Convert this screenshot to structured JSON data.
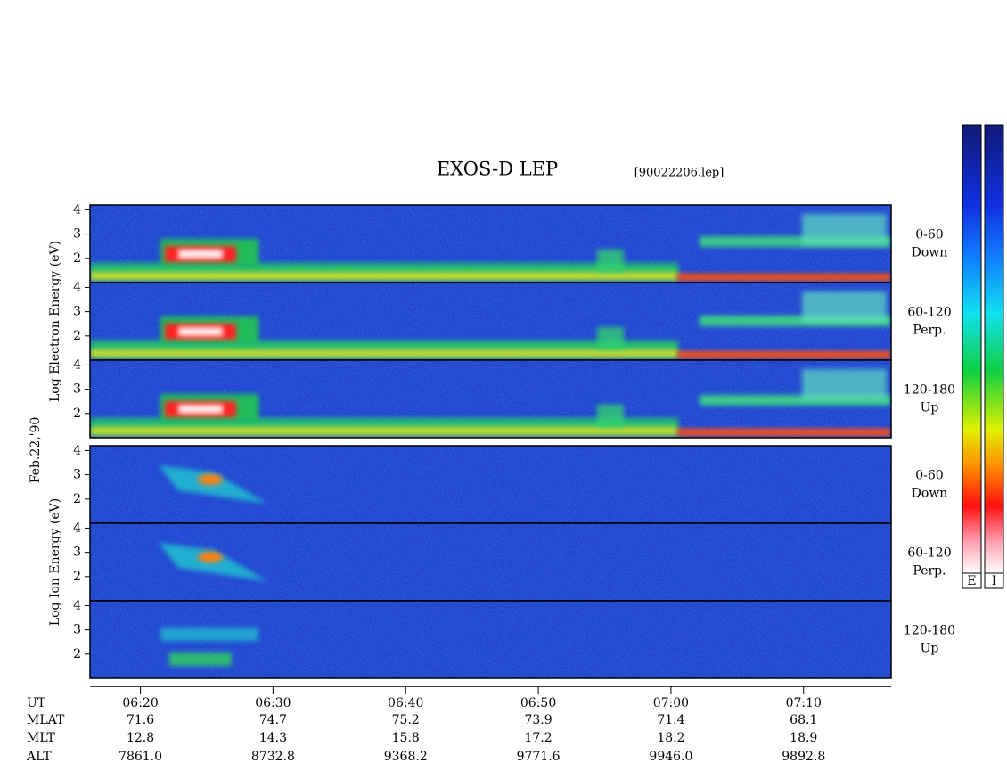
{
  "chart_data": {
    "type": "spectrogram",
    "title": "EXOS-D LEP",
    "subtitle": "[90022206.lep]",
    "date_label": "Feb.22,'90",
    "groups": [
      {
        "ylabel": "Log Electron Energy (eV)",
        "colorbar_label": "E",
        "panels": [
          {
            "label": [
              "0-60",
              "Down"
            ]
          },
          {
            "label": [
              "60-120",
              "Perp."
            ]
          },
          {
            "label": [
              "120-180",
              "Up"
            ]
          }
        ]
      },
      {
        "ylabel": "Log Ion Energy (eV)",
        "colorbar_label": "I",
        "panels": [
          {
            "label": [
              "0-60",
              "Down"
            ]
          },
          {
            "label": [
              "60-120",
              "Perp."
            ]
          },
          {
            "label": [
              "120-180",
              "Up"
            ]
          }
        ]
      }
    ],
    "ylim": [
      1,
      4.2
    ],
    "yticks": [
      2,
      3,
      4
    ],
    "xlim": [
      376.2,
      436.6
    ],
    "xticks": [
      {
        "value": 380,
        "label": "06:20"
      },
      {
        "value": 390,
        "label": "06:30"
      },
      {
        "value": 400,
        "label": "06:40"
      },
      {
        "value": 410,
        "label": "06:50"
      },
      {
        "value": 420,
        "label": "07:00"
      },
      {
        "value": 430,
        "label": "07:10"
      }
    ],
    "orbit_rows": [
      {
        "name": "UT"
      },
      {
        "name": "MLAT",
        "values": [
          "71.6",
          "74.7",
          "75.2",
          "73.9",
          "71.4",
          "68.1"
        ]
      },
      {
        "name": "MLT",
        "values": [
          "12.8",
          "14.3",
          "15.8",
          "17.2",
          "18.2",
          "18.9"
        ]
      },
      {
        "name": "ALT",
        "values": [
          "7861.0",
          "8732.8",
          "9368.2",
          "9771.6",
          "9946.0",
          "9892.8"
        ]
      }
    ]
  }
}
